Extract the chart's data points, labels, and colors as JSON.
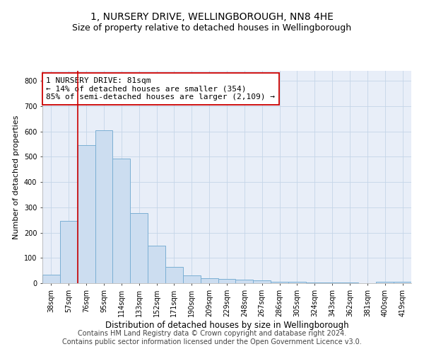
{
  "title": "1, NURSERY DRIVE, WELLINGBOROUGH, NN8 4HE",
  "subtitle": "Size of property relative to detached houses in Wellingborough",
  "xlabel": "Distribution of detached houses by size in Wellingborough",
  "ylabel": "Number of detached properties",
  "bar_labels": [
    "38sqm",
    "57sqm",
    "76sqm",
    "95sqm",
    "114sqm",
    "133sqm",
    "152sqm",
    "171sqm",
    "190sqm",
    "209sqm",
    "229sqm",
    "248sqm",
    "267sqm",
    "286sqm",
    "305sqm",
    "324sqm",
    "343sqm",
    "362sqm",
    "381sqm",
    "400sqm",
    "419sqm"
  ],
  "bar_values": [
    35,
    247,
    547,
    606,
    494,
    278,
    148,
    65,
    30,
    20,
    18,
    14,
    12,
    7,
    5,
    4,
    3,
    2,
    1,
    6,
    5
  ],
  "bar_color": "#ccddf0",
  "bar_edge_color": "#7bafd4",
  "vline_x": 2.0,
  "vline_color": "#cc0000",
  "annotation_text": "1 NURSERY DRIVE: 81sqm\n← 14% of detached houses are smaller (354)\n85% of semi-detached houses are larger (2,109) →",
  "annotation_box_color": "#ffffff",
  "annotation_box_edge": "#cc0000",
  "ylim": [
    0,
    840
  ],
  "yticks": [
    0,
    100,
    200,
    300,
    400,
    500,
    600,
    700,
    800
  ],
  "grid_color": "#c5d5e8",
  "background_color": "#e8eef8",
  "footer_line1": "Contains HM Land Registry data © Crown copyright and database right 2024.",
  "footer_line2": "Contains public sector information licensed under the Open Government Licence v3.0.",
  "title_fontsize": 10,
  "subtitle_fontsize": 9,
  "xlabel_fontsize": 8.5,
  "ylabel_fontsize": 8,
  "tick_fontsize": 7,
  "annotation_fontsize": 8,
  "footer_fontsize": 7
}
